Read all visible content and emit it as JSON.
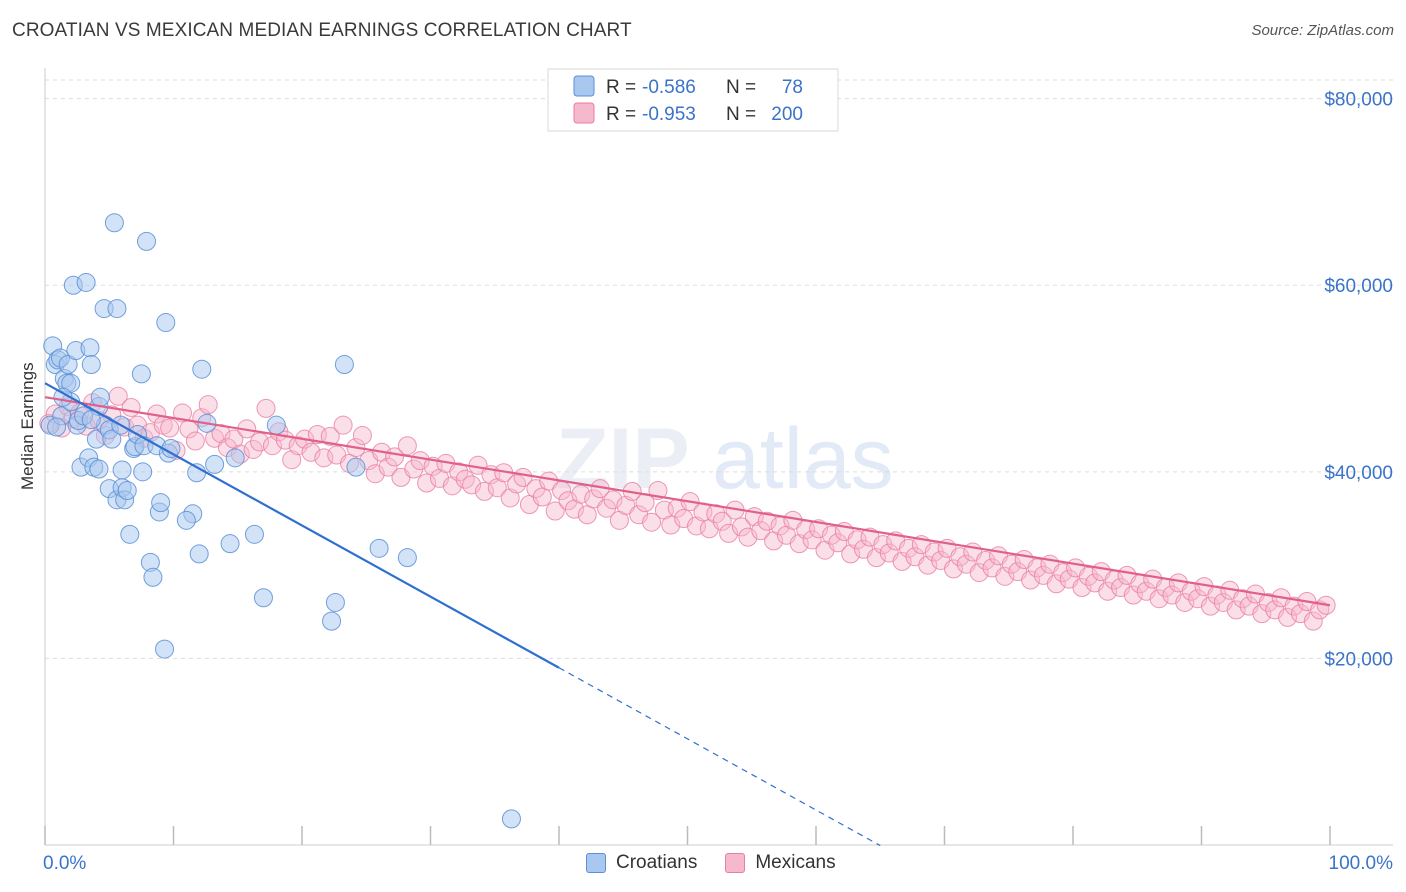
{
  "title": "CROATIAN VS MEXICAN MEDIAN EARNINGS CORRELATION CHART",
  "source": "Source: ZipAtlas.com",
  "watermark": {
    "part1": "ZIP",
    "part2": "atlas"
  },
  "legend": {
    "rows": [
      {
        "r_label": "R =",
        "r_value": "-0.586",
        "n_label": "N =",
        "n_value": "78"
      },
      {
        "r_label": "R =",
        "r_value": "-0.953",
        "n_label": "N =",
        "n_value": "200"
      }
    ]
  },
  "bottom_legend": {
    "croatians": "Croatians",
    "mexicans": "Mexicans"
  },
  "colors": {
    "croatians_fill": "#a8c8f0",
    "croatians_stroke": "#5b8fd6",
    "croatians_line": "#2f6fd0",
    "mexicans_fill": "#f6b8cc",
    "mexicans_stroke": "#e87ea1",
    "mexicans_line": "#e0608a",
    "axis_value": "#3a73c9",
    "grid": "#dddddd"
  },
  "chart_data": {
    "type": "scatter",
    "title": "CROATIAN VS MEXICAN MEDIAN EARNINGS CORRELATION CHART",
    "xlabel": "",
    "ylabel": "Median Earnings",
    "x_tick_labels": [
      "0.0%",
      "100.0%"
    ],
    "y_tick_labels": [
      "$20,000",
      "$40,000",
      "$60,000",
      "$80,000"
    ],
    "xlim": [
      0,
      100
    ],
    "ylim": [
      0,
      82000
    ],
    "grid": true,
    "legend_position": "top-center",
    "series": [
      {
        "name": "Croatians",
        "r": -0.586,
        "n": 78,
        "trend": {
          "x0": 0,
          "y0": 49500,
          "x1": 40,
          "y1": 19000,
          "dashed_to_x": 65
        },
        "points": [
          [
            0.4,
            45000
          ],
          [
            0.6,
            53500
          ],
          [
            0.8,
            51500
          ],
          [
            1.0,
            52000
          ],
          [
            1.2,
            52200
          ],
          [
            1.3,
            46000
          ],
          [
            1.5,
            50000
          ],
          [
            1.7,
            49500
          ],
          [
            1.8,
            51500
          ],
          [
            2.0,
            47500
          ],
          [
            2.2,
            60000
          ],
          [
            2.4,
            53000
          ],
          [
            2.5,
            45000
          ],
          [
            2.6,
            45500
          ],
          [
            2.8,
            40500
          ],
          [
            3.0,
            46000
          ],
          [
            3.2,
            60300
          ],
          [
            3.4,
            41500
          ],
          [
            3.5,
            53300
          ],
          [
            3.6,
            51500
          ],
          [
            3.8,
            40500
          ],
          [
            4.0,
            43500
          ],
          [
            4.2,
            40300
          ],
          [
            4.2,
            47000
          ],
          [
            4.3,
            48000
          ],
          [
            4.6,
            57500
          ],
          [
            4.7,
            45000
          ],
          [
            5.0,
            38200
          ],
          [
            5.0,
            44500
          ],
          [
            5.2,
            43500
          ],
          [
            5.4,
            66700
          ],
          [
            5.6,
            57500
          ],
          [
            5.6,
            37000
          ],
          [
            5.9,
            45000
          ],
          [
            6.0,
            38300
          ],
          [
            6.2,
            37000
          ],
          [
            6.4,
            38000
          ],
          [
            6.6,
            33300
          ],
          [
            6.9,
            42500
          ],
          [
            7.0,
            42700
          ],
          [
            7.2,
            44000
          ],
          [
            7.5,
            50500
          ],
          [
            7.6,
            40000
          ],
          [
            7.7,
            42800
          ],
          [
            7.9,
            64700
          ],
          [
            8.2,
            30300
          ],
          [
            8.4,
            28700
          ],
          [
            8.7,
            42800
          ],
          [
            8.9,
            35700
          ],
          [
            9.0,
            36700
          ],
          [
            9.3,
            21000
          ],
          [
            9.4,
            56000
          ],
          [
            9.6,
            42000
          ],
          [
            9.8,
            42500
          ],
          [
            11.5,
            35500
          ],
          [
            11.8,
            39900
          ],
          [
            12.0,
            31200
          ],
          [
            12.2,
            51000
          ],
          [
            12.6,
            45200
          ],
          [
            13.2,
            40800
          ],
          [
            14.4,
            32300
          ],
          [
            14.8,
            41500
          ],
          [
            16.3,
            33300
          ],
          [
            17.0,
            26500
          ],
          [
            18.0,
            45000
          ],
          [
            22.3,
            24000
          ],
          [
            22.6,
            26000
          ],
          [
            23.3,
            51500
          ],
          [
            24.2,
            40500
          ],
          [
            26.0,
            31800
          ],
          [
            28.2,
            30800
          ],
          [
            36.3,
            2800
          ],
          [
            2.0,
            49500
          ],
          [
            3.6,
            45600
          ],
          [
            6.0,
            40200
          ],
          [
            11.0,
            34800
          ],
          [
            0.9,
            44800
          ],
          [
            1.4,
            48000
          ]
        ]
      },
      {
        "name": "Mexicans",
        "r": -0.953,
        "n": 200,
        "trend": {
          "x0": 0,
          "y0": 48000,
          "x1": 100,
          "y1": 25700
        },
        "points": [
          [
            0.3,
            45200
          ],
          [
            0.8,
            46200
          ],
          [
            1.3,
            44700
          ],
          [
            1.8,
            47000
          ],
          [
            2.2,
            45700
          ],
          [
            2.7,
            46300
          ],
          [
            3.2,
            44900
          ],
          [
            3.7,
            47400
          ],
          [
            4.2,
            45500
          ],
          [
            4.7,
            43900
          ],
          [
            5.2,
            46100
          ],
          [
            5.7,
            48100
          ],
          [
            6.2,
            44800
          ],
          [
            6.7,
            46900
          ],
          [
            7.2,
            45000
          ],
          [
            7.7,
            43600
          ],
          [
            8.2,
            44200
          ],
          [
            8.7,
            46200
          ],
          [
            9.2,
            45000
          ],
          [
            9.7,
            44700
          ],
          [
            10.2,
            42300
          ],
          [
            10.7,
            46300
          ],
          [
            11.2,
            44600
          ],
          [
            11.7,
            43300
          ],
          [
            12.2,
            45800
          ],
          [
            12.7,
            47200
          ],
          [
            13.2,
            43600
          ],
          [
            13.7,
            44100
          ],
          [
            14.2,
            42600
          ],
          [
            14.7,
            43500
          ],
          [
            15.2,
            41900
          ],
          [
            15.7,
            44600
          ],
          [
            16.2,
            42400
          ],
          [
            16.7,
            43200
          ],
          [
            17.2,
            46800
          ],
          [
            17.7,
            42800
          ],
          [
            18.2,
            44300
          ],
          [
            18.7,
            43400
          ],
          [
            19.2,
            41300
          ],
          [
            19.7,
            42800
          ],
          [
            20.2,
            43500
          ],
          [
            20.7,
            42100
          ],
          [
            21.2,
            44000
          ],
          [
            21.7,
            41500
          ],
          [
            22.2,
            43800
          ],
          [
            22.7,
            41800
          ],
          [
            23.2,
            45000
          ],
          [
            23.7,
            40900
          ],
          [
            24.2,
            42600
          ],
          [
            24.7,
            43900
          ],
          [
            25.2,
            41200
          ],
          [
            25.7,
            39800
          ],
          [
            26.2,
            42100
          ],
          [
            26.7,
            40500
          ],
          [
            27.2,
            41600
          ],
          [
            27.7,
            39400
          ],
          [
            28.2,
            42800
          ],
          [
            28.7,
            40300
          ],
          [
            29.2,
            41200
          ],
          [
            29.7,
            38800
          ],
          [
            30.2,
            40600
          ],
          [
            30.7,
            39300
          ],
          [
            31.2,
            40900
          ],
          [
            31.7,
            38500
          ],
          [
            32.2,
            40000
          ],
          [
            32.7,
            39200
          ],
          [
            33.2,
            38600
          ],
          [
            33.7,
            40700
          ],
          [
            34.2,
            37900
          ],
          [
            34.7,
            39700
          ],
          [
            35.2,
            38300
          ],
          [
            35.7,
            39900
          ],
          [
            36.2,
            37200
          ],
          [
            36.7,
            38700
          ],
          [
            37.2,
            39400
          ],
          [
            37.7,
            36500
          ],
          [
            38.2,
            38200
          ],
          [
            38.7,
            37300
          ],
          [
            39.2,
            39000
          ],
          [
            39.7,
            35800
          ],
          [
            40.2,
            38000
          ],
          [
            40.7,
            36900
          ],
          [
            41.2,
            36000
          ],
          [
            41.7,
            37600
          ],
          [
            42.2,
            35400
          ],
          [
            42.7,
            37100
          ],
          [
            43.2,
            38200
          ],
          [
            43.7,
            36100
          ],
          [
            44.2,
            37000
          ],
          [
            44.7,
            34800
          ],
          [
            45.2,
            36400
          ],
          [
            45.7,
            37900
          ],
          [
            46.2,
            35400
          ],
          [
            46.7,
            36700
          ],
          [
            47.2,
            34600
          ],
          [
            47.7,
            38000
          ],
          [
            48.2,
            35900
          ],
          [
            48.7,
            34300
          ],
          [
            49.2,
            36100
          ],
          [
            49.7,
            35000
          ],
          [
            50.2,
            36800
          ],
          [
            50.7,
            34200
          ],
          [
            51.2,
            35700
          ],
          [
            51.7,
            33900
          ],
          [
            52.2,
            35500
          ],
          [
            52.7,
            34700
          ],
          [
            53.2,
            33400
          ],
          [
            53.7,
            35900
          ],
          [
            54.2,
            34100
          ],
          [
            54.7,
            33000
          ],
          [
            55.2,
            35200
          ],
          [
            55.7,
            33700
          ],
          [
            56.2,
            34700
          ],
          [
            56.7,
            32600
          ],
          [
            57.2,
            34200
          ],
          [
            57.7,
            33200
          ],
          [
            58.2,
            34800
          ],
          [
            58.7,
            32300
          ],
          [
            59.2,
            33800
          ],
          [
            59.7,
            32700
          ],
          [
            60.2,
            33900
          ],
          [
            60.7,
            31600
          ],
          [
            61.2,
            33200
          ],
          [
            61.7,
            32400
          ],
          [
            62.2,
            33600
          ],
          [
            62.7,
            31200
          ],
          [
            63.2,
            32700
          ],
          [
            63.7,
            31700
          ],
          [
            64.2,
            33000
          ],
          [
            64.7,
            30800
          ],
          [
            65.2,
            32200
          ],
          [
            65.7,
            31300
          ],
          [
            66.2,
            32600
          ],
          [
            66.7,
            30400
          ],
          [
            67.2,
            31800
          ],
          [
            67.7,
            30900
          ],
          [
            68.2,
            32200
          ],
          [
            68.7,
            30000
          ],
          [
            69.2,
            31400
          ],
          [
            69.7,
            30500
          ],
          [
            70.2,
            31800
          ],
          [
            70.7,
            29600
          ],
          [
            71.2,
            30900
          ],
          [
            71.7,
            30100
          ],
          [
            72.2,
            31400
          ],
          [
            72.7,
            29200
          ],
          [
            73.2,
            30500
          ],
          [
            73.7,
            29700
          ],
          [
            74.2,
            31000
          ],
          [
            74.7,
            28800
          ],
          [
            75.2,
            30100
          ],
          [
            75.7,
            29300
          ],
          [
            76.2,
            30600
          ],
          [
            76.7,
            28400
          ],
          [
            77.2,
            29700
          ],
          [
            77.7,
            28900
          ],
          [
            78.2,
            30100
          ],
          [
            78.7,
            28000
          ],
          [
            79.2,
            29200
          ],
          [
            79.7,
            28500
          ],
          [
            80.2,
            29700
          ],
          [
            80.7,
            27600
          ],
          [
            81.2,
            28800
          ],
          [
            81.7,
            28100
          ],
          [
            82.2,
            29300
          ],
          [
            82.7,
            27200
          ],
          [
            83.2,
            28400
          ],
          [
            83.7,
            27600
          ],
          [
            84.2,
            28900
          ],
          [
            84.7,
            26800
          ],
          [
            85.2,
            28000
          ],
          [
            85.7,
            27200
          ],
          [
            86.2,
            28500
          ],
          [
            86.7,
            26400
          ],
          [
            87.2,
            27600
          ],
          [
            87.7,
            26800
          ],
          [
            88.2,
            28100
          ],
          [
            88.7,
            26000
          ],
          [
            89.2,
            27200
          ],
          [
            89.7,
            26400
          ],
          [
            90.2,
            27700
          ],
          [
            90.7,
            25600
          ],
          [
            91.2,
            26800
          ],
          [
            91.7,
            26000
          ],
          [
            92.2,
            27300
          ],
          [
            92.7,
            25200
          ],
          [
            93.2,
            26400
          ],
          [
            93.7,
            25600
          ],
          [
            94.2,
            26900
          ],
          [
            94.7,
            24800
          ],
          [
            95.2,
            26000
          ],
          [
            95.7,
            25200
          ],
          [
            96.2,
            26500
          ],
          [
            96.7,
            24400
          ],
          [
            97.2,
            25600
          ],
          [
            97.7,
            24800
          ],
          [
            98.2,
            26100
          ],
          [
            98.7,
            24000
          ],
          [
            99.2,
            25200
          ],
          [
            99.7,
            25700
          ]
        ]
      }
    ]
  }
}
